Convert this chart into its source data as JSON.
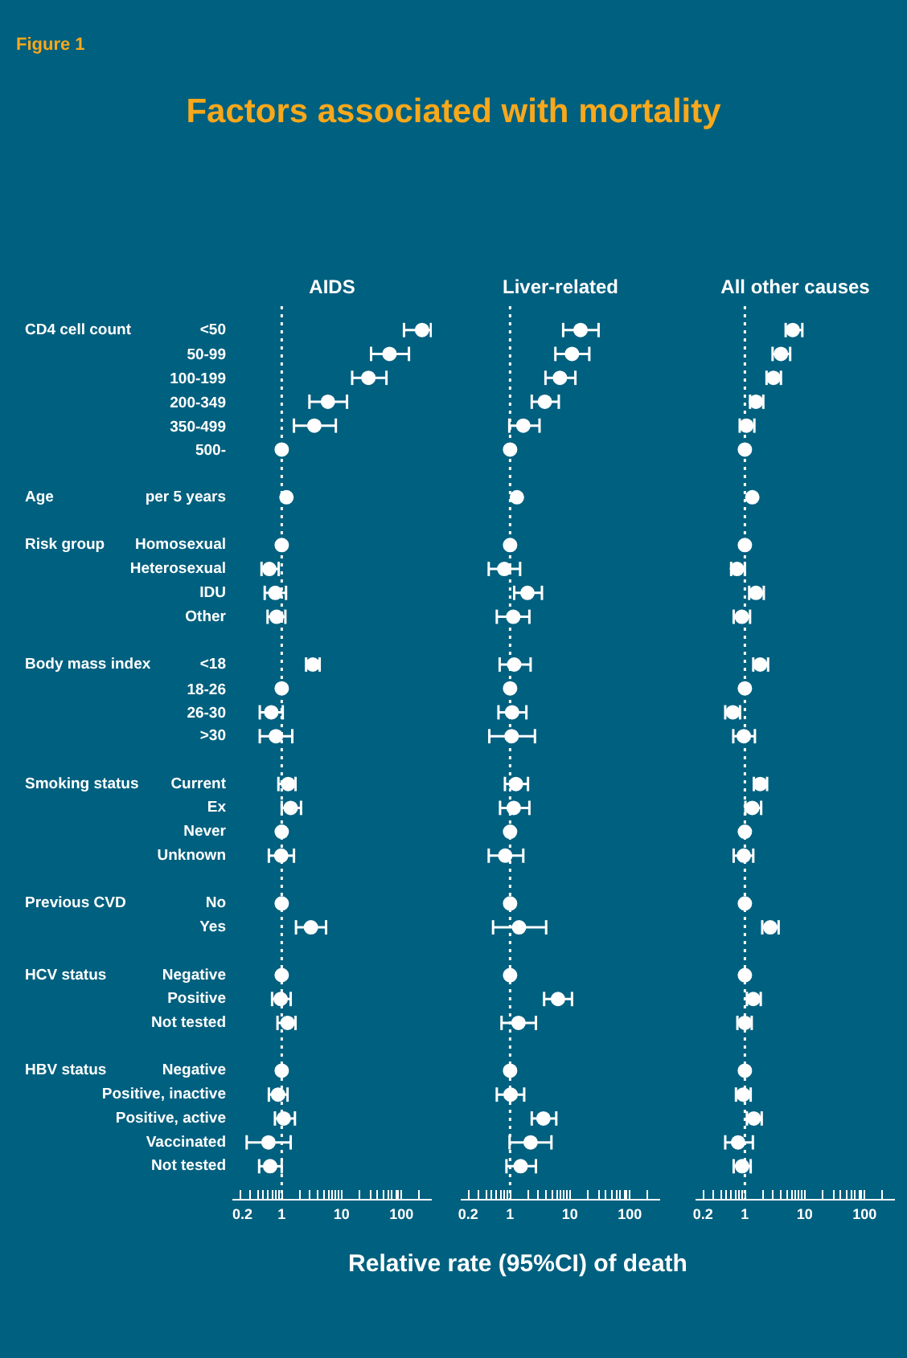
{
  "chart_data": [
    {
      "type": "scatter",
      "orientation": "horizontal",
      "title": "AIDS",
      "annotations": [
        "Figure 1",
        "Factors associated with mortality"
      ],
      "categories": [
        "<50",
        "50-99",
        "100-199",
        "200-349",
        "350-499",
        "500-",
        null,
        "per 5 years",
        null,
        "Homosexual",
        "Heterosexual",
        "IDU",
        "Other",
        null,
        "<18",
        "18-26",
        "26-30",
        ">30",
        null,
        "Current",
        "Ex",
        "Never",
        "Unknown",
        null,
        "No",
        "Yes",
        null,
        "Negative",
        "Positive",
        "Not tested",
        null,
        "Negative",
        "Positive, inactive",
        "Positive, active",
        "Vaccinated",
        "Not tested"
      ],
      "y2_categories": [
        "CD4 cell count",
        null,
        null,
        null,
        null,
        null,
        null,
        "Age",
        null,
        "Risk group",
        null,
        null,
        null,
        null,
        "Body mass index",
        null,
        null,
        null,
        null,
        "Smoking status",
        null,
        null,
        null,
        null,
        "Previous CVD",
        null,
        null,
        "HCV status",
        null,
        null,
        null,
        "HBV status",
        null,
        null,
        null,
        null
      ],
      "values": [
        220,
        63,
        28,
        5.9,
        3.5,
        1,
        null,
        1.2,
        null,
        1,
        0.62,
        0.78,
        0.82,
        null,
        3.3,
        1,
        0.67,
        0.8,
        null,
        1.28,
        1.41,
        1,
        0.98,
        null,
        1,
        3.07,
        null,
        1,
        0.96,
        1.25,
        null,
        1,
        0.87,
        1.08,
        0.6,
        0.64
      ],
      "errors": [
        [
          110,
          310
        ],
        [
          31,
          133
        ],
        [
          15,
          56
        ],
        [
          2.9,
          12.3
        ],
        [
          1.6,
          8
        ],
        null,
        null,
        null,
        null,
        null,
        [
          0.46,
          0.89
        ],
        [
          0.52,
          1.18
        ],
        [
          0.58,
          1.15
        ],
        null,
        [
          2.55,
          4.3
        ],
        null,
        [
          0.43,
          1.04
        ],
        [
          0.43,
          1.5
        ],
        null,
        [
          0.88,
          1.7
        ],
        [
          1,
          2.1
        ],
        null,
        [
          0.61,
          1.6
        ],
        null,
        null,
        [
          1.73,
          5.5
        ],
        null,
        null,
        [
          0.69,
          1.41
        ],
        [
          0.85,
          1.7
        ],
        null,
        null,
        [
          0.61,
          1.25
        ],
        [
          0.77,
          1.66
        ],
        [
          0.26,
          1.41
        ],
        [
          0.42,
          1.0
        ]
      ],
      "color": "#ffffff",
      "marker": "circle",
      "log": "x",
      "xlim": [
        0.15,
        320
      ],
      "xticks": [
        0.2,
        {
          "value": 0.3,
          "label": null
        },
        {
          "value": 0.4,
          "label": null
        },
        {
          "value": 0.5,
          "label": null
        },
        {
          "value": 0.6,
          "label": null
        },
        {
          "value": 0.7,
          "label": null
        },
        {
          "value": 0.8,
          "label": null
        },
        {
          "value": 0.9,
          "label": null
        },
        1,
        {
          "value": 2,
          "label": null
        },
        {
          "value": 3,
          "label": null
        },
        {
          "value": 4,
          "label": null
        },
        {
          "value": 5,
          "label": null
        },
        {
          "value": 6,
          "label": null
        },
        {
          "value": 7,
          "label": null
        },
        {
          "value": 8,
          "label": null
        },
        {
          "value": 9,
          "label": null
        },
        10,
        {
          "value": 20,
          "label": null
        },
        {
          "value": 30,
          "label": null
        },
        {
          "value": 40,
          "label": null
        },
        {
          "value": 50,
          "label": null
        },
        {
          "value": 60,
          "label": null
        },
        {
          "value": 70,
          "label": null
        },
        {
          "value": 80,
          "label": null
        },
        {
          "value": 90,
          "label": null
        },
        100,
        {
          "value": 200,
          "label": null
        }
      ],
      "ref_lines": [
        {
          "axis": "x",
          "value": 1,
          "color": "#ffffff",
          "line_style": "dotted"
        }
      ]
    },
    {
      "type": "scatter",
      "orientation": "horizontal",
      "title": "Liver-related",
      "xlabel": "Relative rate (95%CI) of death",
      "values": [
        15,
        10.8,
        6.8,
        3.8,
        1.66,
        1,
        null,
        1.3,
        null,
        1,
        0.8,
        1.95,
        1.13,
        null,
        1.17,
        1,
        1.08,
        1.06,
        null,
        1.25,
        1.15,
        1,
        0.83,
        null,
        1,
        1.41,
        null,
        1,
        6.3,
        1.38,
        null,
        1,
        1.02,
        3.6,
        2.2,
        1.5
      ],
      "errors": [
        [
          7.7,
          30
        ],
        [
          5.7,
          21
        ],
        [
          3.9,
          12.3
        ],
        [
          2.3,
          6.5
        ],
        [
          0.97,
          3.1
        ],
        null,
        null,
        null,
        null,
        null,
        [
          0.44,
          1.47
        ],
        [
          1.17,
          3.4
        ],
        [
          0.6,
          2.1
        ],
        null,
        [
          0.67,
          2.2
        ],
        null,
        [
          0.64,
          1.87
        ],
        [
          0.45,
          2.6
        ],
        null,
        [
          0.82,
          1.99
        ],
        [
          0.68,
          2.1
        ],
        null,
        [
          0.44,
          1.66
        ],
        null,
        null,
        [
          0.52,
          4.0
        ],
        null,
        null,
        [
          3.7,
          10.8
        ],
        [
          0.72,
          2.7
        ],
        null,
        null,
        [
          0.6,
          1.72
        ],
        [
          2.3,
          5.9
        ],
        [
          0.98,
          4.9
        ],
        [
          0.87,
          2.7
        ]
      ],
      "color": "#ffffff",
      "marker": "circle",
      "log": "x",
      "xlim": [
        0.15,
        320
      ],
      "xticks": [
        0.2,
        {
          "value": 0.3,
          "label": null
        },
        {
          "value": 0.4,
          "label": null
        },
        {
          "value": 0.5,
          "label": null
        },
        {
          "value": 0.6,
          "label": null
        },
        {
          "value": 0.7,
          "label": null
        },
        {
          "value": 0.8,
          "label": null
        },
        {
          "value": 0.9,
          "label": null
        },
        1,
        {
          "value": 2,
          "label": null
        },
        {
          "value": 3,
          "label": null
        },
        {
          "value": 4,
          "label": null
        },
        {
          "value": 5,
          "label": null
        },
        {
          "value": 6,
          "label": null
        },
        {
          "value": 7,
          "label": null
        },
        {
          "value": 8,
          "label": null
        },
        {
          "value": 9,
          "label": null
        },
        10,
        {
          "value": 20,
          "label": null
        },
        {
          "value": 30,
          "label": null
        },
        {
          "value": 40,
          "label": null
        },
        {
          "value": 50,
          "label": null
        },
        {
          "value": 60,
          "label": null
        },
        {
          "value": 70,
          "label": null
        },
        {
          "value": 80,
          "label": null
        },
        {
          "value": 90,
          "label": null
        },
        100,
        {
          "value": 200,
          "label": null
        }
      ],
      "ref_lines": [
        {
          "axis": "x",
          "value": 1,
          "color": "#ffffff",
          "line_style": "dotted"
        }
      ]
    },
    {
      "type": "scatter",
      "orientation": "horizontal",
      "title": "All other causes",
      "values": [
        6.3,
        4.0,
        3.0,
        1.53,
        1.06,
        1,
        null,
        1.33,
        null,
        1,
        0.74,
        1.53,
        0.89,
        null,
        1.8,
        1,
        0.63,
        0.96,
        null,
        1.8,
        1.33,
        1,
        0.96,
        null,
        1,
        2.65,
        null,
        1,
        1.38,
        1.0,
        null,
        1,
        0.94,
        1.41,
        0.77,
        0.9
      ],
      "errors": [
        [
          4.8,
          9.1
        ],
        [
          2.9,
          5.7
        ],
        [
          2.3,
          4.0
        ],
        [
          1.22,
          2.03
        ],
        [
          0.82,
          1.44
        ],
        null,
        null,
        null,
        null,
        null,
        [
          0.59,
          1.0
        ],
        [
          1.18,
          2.07
        ],
        [
          0.65,
          1.22
        ],
        null,
        [
          1.38,
          2.44
        ],
        null,
        [
          0.47,
          0.83
        ],
        [
          0.64,
          1.47
        ],
        null,
        [
          1.41,
          2.35
        ],
        [
          1.02,
          1.87
        ],
        null,
        [
          0.65,
          1.38
        ],
        null,
        null,
        [
          1.95,
          3.66
        ],
        null,
        null,
        [
          1.08,
          1.84
        ],
        [
          0.75,
          1.3
        ],
        null,
        null,
        [
          0.71,
          1.25
        ],
        [
          1.08,
          1.91
        ],
        [
          0.47,
          1.36
        ],
        [
          0.65,
          1.25
        ]
      ],
      "color": "#ffffff",
      "marker": "circle",
      "log": "x",
      "xlim": [
        0.15,
        320
      ],
      "xticks": [
        0.2,
        {
          "value": 0.3,
          "label": null
        },
        {
          "value": 0.4,
          "label": null
        },
        {
          "value": 0.5,
          "label": null
        },
        {
          "value": 0.6,
          "label": null
        },
        {
          "value": 0.7,
          "label": null
        },
        {
          "value": 0.8,
          "label": null
        },
        {
          "value": 0.9,
          "label": null
        },
        1,
        {
          "value": 2,
          "label": null
        },
        {
          "value": 3,
          "label": null
        },
        {
          "value": 4,
          "label": null
        },
        {
          "value": 5,
          "label": null
        },
        {
          "value": 6,
          "label": null
        },
        {
          "value": 7,
          "label": null
        },
        {
          "value": 8,
          "label": null
        },
        {
          "value": 9,
          "label": null
        },
        10,
        {
          "value": 20,
          "label": null
        },
        {
          "value": 30,
          "label": null
        },
        {
          "value": 40,
          "label": null
        },
        {
          "value": 50,
          "label": null
        },
        {
          "value": 60,
          "label": null
        },
        {
          "value": 70,
          "label": null
        },
        {
          "value": 80,
          "label": null
        },
        {
          "value": 90,
          "label": null
        },
        100,
        {
          "value": 200,
          "label": null
        }
      ],
      "ref_lines": [
        {
          "axis": "x",
          "value": 1,
          "color": "#ffffff",
          "line_style": "dotted"
        }
      ]
    }
  ]
}
